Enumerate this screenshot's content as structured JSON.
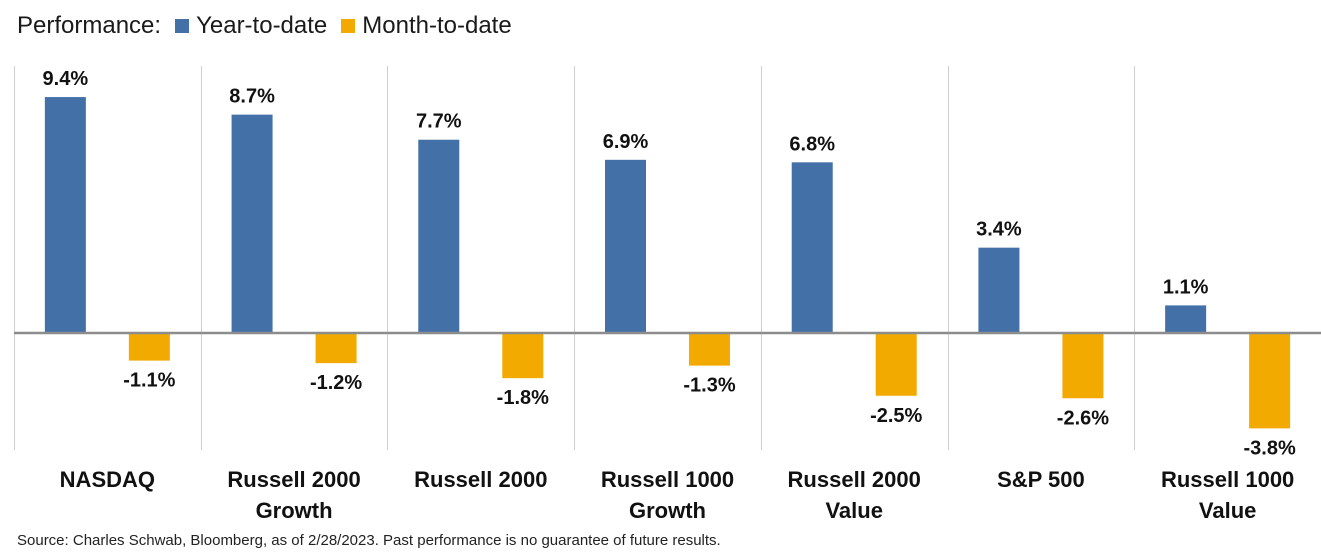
{
  "legend": {
    "prefix": "Performance:",
    "items": [
      {
        "label": "Year-to-date",
        "color": "#4470A8"
      },
      {
        "label": "Month-to-date",
        "color": "#F2AA00"
      }
    ]
  },
  "chart_data": {
    "type": "bar",
    "categories": [
      [
        "NASDAQ"
      ],
      [
        "Russell 2000",
        "Growth"
      ],
      [
        "Russell 2000"
      ],
      [
        "Russell 1000",
        "Growth"
      ],
      [
        "Russell 2000",
        "Value"
      ],
      [
        "S&P 500"
      ],
      [
        "Russell 1000",
        "Value"
      ]
    ],
    "series": [
      {
        "name": "Year-to-date",
        "color": "#4470A8",
        "values": [
          9.4,
          8.7,
          7.7,
          6.9,
          6.8,
          3.4,
          1.1
        ],
        "labels": [
          "9.4%",
          "8.7%",
          "7.7%",
          "6.9%",
          "6.8%",
          "3.4%",
          "1.1%"
        ]
      },
      {
        "name": "Month-to-date",
        "color": "#F2AA00",
        "values": [
          -1.1,
          -1.2,
          -1.8,
          -1.3,
          -2.5,
          -2.6,
          -3.8
        ],
        "labels": [
          "-1.1%",
          "-1.2%",
          "-1.8%",
          "-1.3%",
          "-2.5%",
          "-2.6%",
          "-3.8%"
        ]
      }
    ],
    "ylim": [
      -4.5,
      10.5
    ],
    "grid": "vertical category separators",
    "legend_position": "top-left"
  },
  "source": "Source: Charles Schwab, Bloomberg, as of 2/28/2023.  Past performance is no guarantee of future results."
}
